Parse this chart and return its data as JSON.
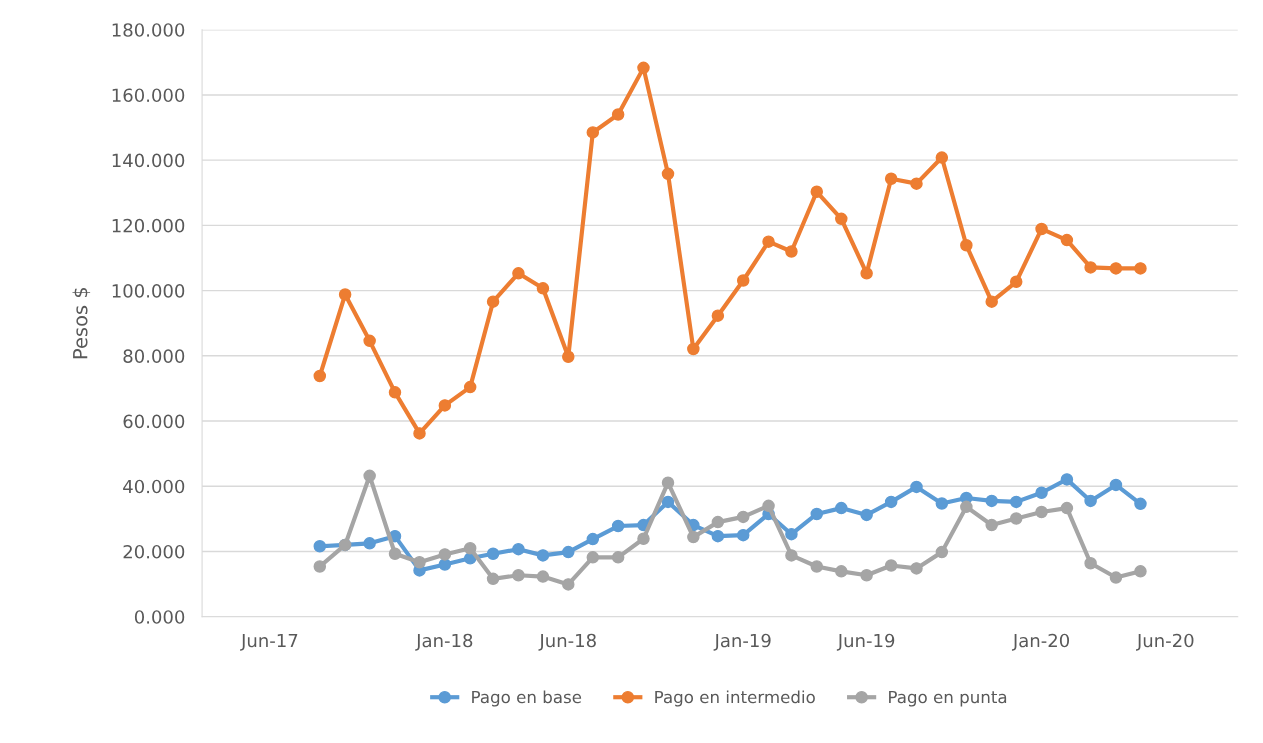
{
  "chart_data": {
    "type": "line",
    "ylabel": "Pesos $",
    "x": [
      "2017-08",
      "2017-09",
      "2017-10",
      "2017-11",
      "2017-12",
      "2018-01",
      "2018-02",
      "2018-03",
      "2018-04",
      "2018-05",
      "2018-06",
      "2018-07",
      "2018-08",
      "2018-09",
      "2018-10",
      "2018-11",
      "2018-12",
      "2019-01",
      "2019-02",
      "2019-03",
      "2019-04",
      "2019-05",
      "2019-06",
      "2019-07",
      "2019-08",
      "2019-09",
      "2019-10",
      "2019-11",
      "2019-12",
      "2020-01",
      "2020-02",
      "2020-03",
      "2020-04",
      "2020-05"
    ],
    "series": [
      {
        "name": "Pago en base",
        "color": "#5b9bd5",
        "values": [
          21.6,
          22.0,
          22.5,
          24.7,
          14.2,
          16.0,
          17.9,
          19.3,
          20.7,
          18.8,
          19.8,
          23.8,
          27.8,
          28.1,
          35.2,
          28.1,
          24.7,
          25.0,
          31.5,
          25.3,
          31.5,
          33.3,
          31.2,
          35.2,
          39.8,
          34.7,
          36.4,
          35.5,
          35.2,
          38.0,
          42.1,
          35.5,
          40.4,
          34.6
        ]
      },
      {
        "name": "Pago en intermedio",
        "color": "#ed7d31",
        "values": [
          73.8,
          98.8,
          84.6,
          68.8,
          56.2,
          64.8,
          70.4,
          96.6,
          105.3,
          100.7,
          79.7,
          148.5,
          154.0,
          168.3,
          135.8,
          82.1,
          92.3,
          103.1,
          115.0,
          112.0,
          130.3,
          122.0,
          105.3,
          134.3,
          132.8,
          140.8,
          113.9,
          96.6,
          102.7,
          118.9,
          115.5,
          107.1,
          106.8,
          106.8
        ]
      },
      {
        "name": "Pago en punta",
        "color": "#a5a5a5",
        "values": [
          15.4,
          22.0,
          43.2,
          19.3,
          16.7,
          19.1,
          21.0,
          11.6,
          12.7,
          12.3,
          9.9,
          18.2,
          18.2,
          23.9,
          41.1,
          24.4,
          29.0,
          30.6,
          34.0,
          18.8,
          15.4,
          13.9,
          12.7,
          15.7,
          14.8,
          19.8,
          33.7,
          28.1,
          30.1,
          32.1,
          33.3,
          16.4,
          12.0,
          13.9
        ]
      }
    ],
    "ylim": [
      0,
      180
    ],
    "yticks": [
      {
        "value": 0,
        "label": "0.000"
      },
      {
        "value": 20,
        "label": "20.000"
      },
      {
        "value": 40,
        "label": "40.000"
      },
      {
        "value": 60,
        "label": "60.000"
      },
      {
        "value": 80,
        "label": "80.000"
      },
      {
        "value": 100,
        "label": "100.000"
      },
      {
        "value": 120,
        "label": "120.000"
      },
      {
        "value": 140,
        "label": "140.000"
      },
      {
        "value": 160,
        "label": "160.000"
      },
      {
        "value": 180,
        "label": "180.000"
      }
    ],
    "xlim": [
      "2017-03-10",
      "2020-08-28"
    ],
    "xticks": [
      {
        "value": "2017-06",
        "label": "Jun-17"
      },
      {
        "value": "2018-01",
        "label": "Jan-18"
      },
      {
        "value": "2018-06",
        "label": "Jun-18"
      },
      {
        "value": "2019-01",
        "label": "Jan-19"
      },
      {
        "value": "2019-06",
        "label": "Jun-19"
      },
      {
        "value": "2020-01",
        "label": "Jan-20"
      },
      {
        "value": "2020-06",
        "label": "Jun-20"
      }
    ],
    "grid": "y",
    "legend": "bottom",
    "marker": "circle",
    "line_style": "solid"
  }
}
